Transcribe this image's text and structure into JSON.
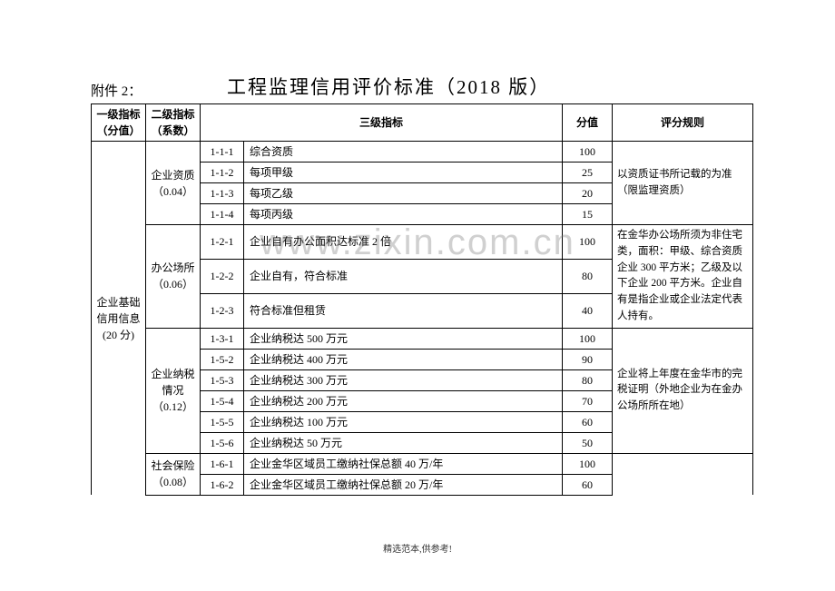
{
  "attach": "附件 2：",
  "title": "工程监理信用评价标准（2018 版）",
  "watermark": "www.zixin.com.cn",
  "footer": "精选范本,供参考!",
  "hdr": {
    "c1a": "一级指标",
    "c1b": "（分值）",
    "c2a": "二级指标",
    "c2b": "（系数）",
    "c3": "三级指标",
    "c4": "分值",
    "c5": "评分规则"
  },
  "lvl1": {
    "a": "企业基础",
    "b": "信用信息",
    "c": "(20 分)"
  },
  "g1": {
    "name": "企业资质\n（0.04）",
    "r": [
      {
        "code": "1-1-1",
        "desc": "综合资质",
        "score": "100"
      },
      {
        "code": "1-1-2",
        "desc": "每项甲级",
        "score": "25"
      },
      {
        "code": "1-1-3",
        "desc": "每项乙级",
        "score": "20"
      },
      {
        "code": "1-1-4",
        "desc": "每项丙级",
        "score": "15"
      }
    ],
    "rule": "以资质证书所记载的为准（限监理资质）"
  },
  "g2": {
    "name": "办公场所\n（0.06）",
    "r": [
      {
        "code": "1-2-1",
        "desc": "企业自有办公面积达标准 2 倍",
        "score": "100"
      },
      {
        "code": "1-2-2",
        "desc": "企业自有，符合标准",
        "score": "80"
      },
      {
        "code": "1-2-3",
        "desc": "符合标准但租赁",
        "score": "40"
      }
    ],
    "rule": "在金华办公场所须为非住宅类，面积：甲级、综合资质企业 300 平方米；乙级及以下企业 200 平方米。企业自有是指企业或企业法定代表人持有。"
  },
  "g3": {
    "name": "企业纳税\n情况\n（0.12）",
    "r": [
      {
        "code": "1-3-1",
        "desc": "企业纳税达 500 万元",
        "score": "100"
      },
      {
        "code": "1-5-2",
        "desc": "企业纳税达 400 万元",
        "score": "90"
      },
      {
        "code": "1-5-3",
        "desc": "企业纳税达 300 万元",
        "score": "80"
      },
      {
        "code": "1-5-4",
        "desc": "企业纳税达 200 万元",
        "score": "70"
      },
      {
        "code": "1-5-5",
        "desc": "企业纳税达 100 万元",
        "score": "60"
      },
      {
        "code": "1-5-6",
        "desc": "企业纳税达 50 万元",
        "score": "50"
      }
    ],
    "rule": "企业将上年度在金华市的完税证明（外地企业为在金办公场所所在地）"
  },
  "g4": {
    "name": "社会保险\n（0.08）",
    "r": [
      {
        "code": "1-6-1",
        "desc": "企业金华区域员工缴纳社保总额 40 万/年",
        "score": "100"
      },
      {
        "code": "1-6-2",
        "desc": "企业金华区域员工缴纳社保总额 20 万/年",
        "score": "60"
      }
    ]
  }
}
